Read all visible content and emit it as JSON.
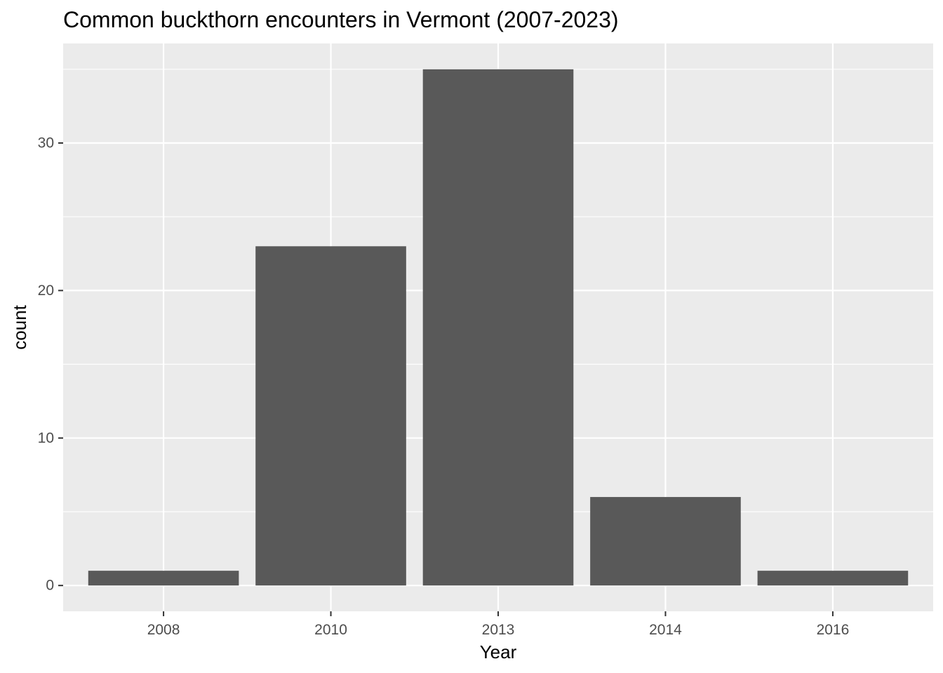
{
  "chart_data": {
    "type": "bar",
    "title": "Common buckthorn encounters in Vermont (2007-2023)",
    "xlabel": "Year",
    "ylabel": "count",
    "categories": [
      "2008",
      "2010",
      "2013",
      "2014",
      "2016"
    ],
    "values": [
      1,
      23,
      35,
      6,
      1
    ],
    "ylim": [
      -1.75,
      36.75
    ],
    "yticks": [
      0,
      10,
      20,
      30
    ],
    "grid": true,
    "legend": "none",
    "colors": {
      "panel_background": "#EBEBEB",
      "grid_line": "#FFFFFF",
      "bar_fill": "#595959",
      "tick_label": "#4D4D4D",
      "axis_title": "#000000"
    }
  }
}
